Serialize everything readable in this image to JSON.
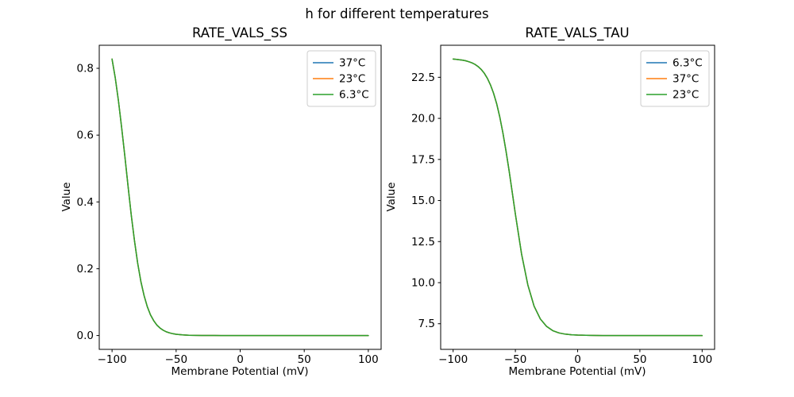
{
  "figure": {
    "suptitle": "h for different temperatures",
    "background": "#ffffff",
    "text_color": "#000000",
    "axes_color": "#000000",
    "legend_border_color": "#cccccc"
  },
  "chart_data": [
    {
      "type": "line",
      "title": "RATE_VALS_SS",
      "xlabel": "Membrane Potential (mV)",
      "ylabel": "Value",
      "xlim": [
        -110,
        110
      ],
      "ylim": [
        -0.0414,
        0.869
      ],
      "xticks": [
        -100,
        -50,
        0,
        50,
        100
      ],
      "xtick_labels": [
        "−100",
        "−50",
        "0",
        "50",
        "100"
      ],
      "yticks": [
        0.0,
        0.2,
        0.4,
        0.6,
        0.8
      ],
      "ytick_labels": [
        "0.0",
        "0.2",
        "0.4",
        "0.6",
        "0.8"
      ],
      "legend_position": "upper right",
      "grid": false,
      "note": "all three temperature curves overlap exactly; green (last plotted) is visible",
      "x": [
        -100,
        -97.5,
        -95,
        -92.5,
        -90,
        -87.5,
        -85,
        -82.5,
        -80,
        -77.5,
        -75,
        -72.5,
        -70,
        -67.5,
        -65,
        -62.5,
        -60,
        -57.5,
        -55,
        -52.5,
        -50,
        -45,
        -40,
        -35,
        -30,
        -25,
        -20,
        -15,
        -10,
        -5,
        0,
        10,
        20,
        30,
        40,
        50,
        60,
        70,
        80,
        90,
        100
      ],
      "series": [
        {
          "name": "37°C",
          "color": "#1f77b4",
          "values": [
            0.8276,
            0.7709,
            0.7022,
            0.6225,
            0.5357,
            0.4467,
            0.3609,
            0.2832,
            0.2166,
            0.1621,
            0.1192,
            0.0865,
            0.0621,
            0.0443,
            0.0314,
            0.0222,
            0.0156,
            0.011,
            0.0077,
            0.0054,
            0.0038,
            0.0019,
            0.0009,
            0.0005,
            0.0002,
            0.0001,
            0.0001,
            0.0,
            0.0,
            0.0,
            0.0,
            0.0,
            0.0,
            0.0,
            0.0,
            0.0,
            0.0,
            0.0,
            0.0,
            0.0,
            0.0
          ]
        },
        {
          "name": "23°C",
          "color": "#ff7f0e",
          "values": [
            0.8276,
            0.7709,
            0.7022,
            0.6225,
            0.5357,
            0.4467,
            0.3609,
            0.2832,
            0.2166,
            0.1621,
            0.1192,
            0.0865,
            0.0621,
            0.0443,
            0.0314,
            0.0222,
            0.0156,
            0.011,
            0.0077,
            0.0054,
            0.0038,
            0.0019,
            0.0009,
            0.0005,
            0.0002,
            0.0001,
            0.0001,
            0.0,
            0.0,
            0.0,
            0.0,
            0.0,
            0.0,
            0.0,
            0.0,
            0.0,
            0.0,
            0.0,
            0.0,
            0.0,
            0.0
          ]
        },
        {
          "name": "6.3°C",
          "color": "#2ca02c",
          "values": [
            0.8276,
            0.7709,
            0.7022,
            0.6225,
            0.5357,
            0.4467,
            0.3609,
            0.2832,
            0.2166,
            0.1621,
            0.1192,
            0.0865,
            0.0621,
            0.0443,
            0.0314,
            0.0222,
            0.0156,
            0.011,
            0.0077,
            0.0054,
            0.0038,
            0.0019,
            0.0009,
            0.0005,
            0.0002,
            0.0001,
            0.0001,
            0.0,
            0.0,
            0.0,
            0.0,
            0.0,
            0.0,
            0.0,
            0.0,
            0.0,
            0.0,
            0.0,
            0.0,
            0.0,
            0.0
          ]
        }
      ]
    },
    {
      "type": "line",
      "title": "RATE_VALS_TAU",
      "xlabel": "Membrane Potential (mV)",
      "ylabel": "Value",
      "xlim": [
        -110,
        110
      ],
      "ylim": [
        5.94,
        24.45
      ],
      "xticks": [
        -100,
        -50,
        0,
        50,
        100
      ],
      "xtick_labels": [
        "−100",
        "−50",
        "0",
        "50",
        "100"
      ],
      "yticks": [
        7.5,
        10.0,
        12.5,
        15.0,
        17.5,
        20.0,
        22.5
      ],
      "ytick_labels": [
        "7.5",
        "10.0",
        "12.5",
        "15.0",
        "17.5",
        "20.0",
        "22.5"
      ],
      "legend_position": "upper right",
      "grid": false,
      "note": "all three temperature curves overlap exactly; green (last plotted) is visible",
      "x": [
        -100,
        -97.5,
        -95,
        -92.5,
        -90,
        -87.5,
        -85,
        -82.5,
        -80,
        -77.5,
        -75,
        -72.5,
        -70,
        -67.5,
        -65,
        -62.5,
        -60,
        -57.5,
        -55,
        -52.5,
        -50,
        -45,
        -40,
        -35,
        -30,
        -25,
        -20,
        -15,
        -10,
        -5,
        0,
        10,
        20,
        30,
        40,
        50,
        60,
        70,
        80,
        90,
        100
      ],
      "series": [
        {
          "name": "6.3°C",
          "color": "#1f77b4",
          "values": [
            23.61,
            23.59,
            23.57,
            23.54,
            23.51,
            23.45,
            23.38,
            23.29,
            23.16,
            22.98,
            22.75,
            22.44,
            22.04,
            21.53,
            20.88,
            20.07,
            19.11,
            18.01,
            16.78,
            15.48,
            14.17,
            11.74,
            9.86,
            8.58,
            7.79,
            7.34,
            7.08,
            6.94,
            6.87,
            6.83,
            6.81,
            6.79,
            6.78,
            6.78,
            6.78,
            6.78,
            6.78,
            6.78,
            6.78,
            6.78,
            6.78
          ]
        },
        {
          "name": "37°C",
          "color": "#ff7f0e",
          "values": [
            23.61,
            23.59,
            23.57,
            23.54,
            23.51,
            23.45,
            23.38,
            23.29,
            23.16,
            22.98,
            22.75,
            22.44,
            22.04,
            21.53,
            20.88,
            20.07,
            19.11,
            18.01,
            16.78,
            15.48,
            14.17,
            11.74,
            9.86,
            8.58,
            7.79,
            7.34,
            7.08,
            6.94,
            6.87,
            6.83,
            6.81,
            6.79,
            6.78,
            6.78,
            6.78,
            6.78,
            6.78,
            6.78,
            6.78,
            6.78,
            6.78
          ]
        },
        {
          "name": "23°C",
          "color": "#2ca02c",
          "values": [
            23.61,
            23.59,
            23.57,
            23.54,
            23.51,
            23.45,
            23.38,
            23.29,
            23.16,
            22.98,
            22.75,
            22.44,
            22.04,
            21.53,
            20.88,
            20.07,
            19.11,
            18.01,
            16.78,
            15.48,
            14.17,
            11.74,
            9.86,
            8.58,
            7.79,
            7.34,
            7.08,
            6.94,
            6.87,
            6.83,
            6.81,
            6.79,
            6.78,
            6.78,
            6.78,
            6.78,
            6.78,
            6.78,
            6.78,
            6.78,
            6.78
          ]
        }
      ]
    }
  ]
}
